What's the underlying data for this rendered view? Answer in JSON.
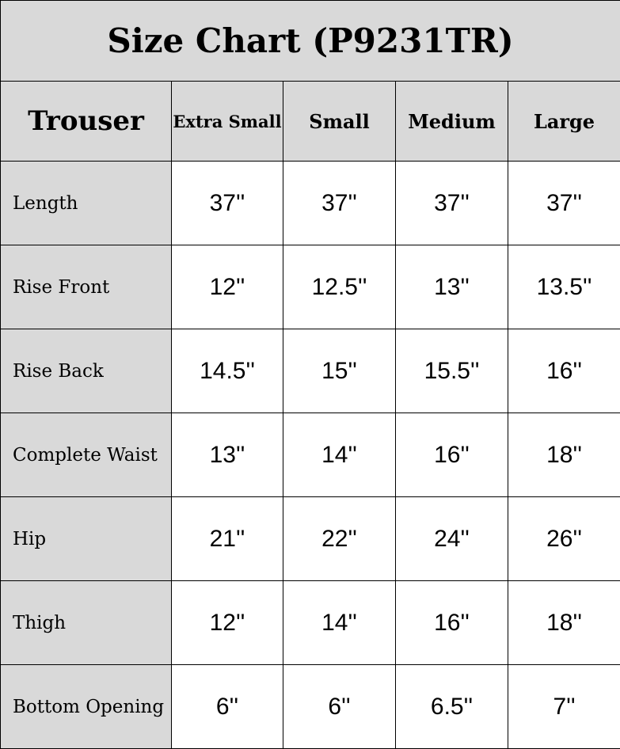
{
  "title": "Size Chart (P9231TR)",
  "header": {
    "category": "Trouser",
    "sizes": [
      "Extra Small",
      "Small",
      "Medium",
      "Large"
    ]
  },
  "rows": [
    {
      "label": "Length",
      "values": [
        "37''",
        "37''",
        "37''",
        "37''"
      ]
    },
    {
      "label": "Rise Front",
      "values": [
        "12''",
        "12.5''",
        "13''",
        "13.5''"
      ]
    },
    {
      "label": "Rise Back",
      "values": [
        "14.5''",
        "15''",
        "15.5''",
        "16''"
      ]
    },
    {
      "label": "Complete Waist",
      "values": [
        "13''",
        "14''",
        "16''",
        "18''"
      ]
    },
    {
      "label": "Hip",
      "values": [
        "21''",
        "22''",
        "24''",
        "26''"
      ]
    },
    {
      "label": "Thigh",
      "values": [
        "12''",
        "14''",
        "16''",
        "18''"
      ]
    },
    {
      "label": "Bottom Opening",
      "values": [
        "6''",
        "6''",
        "6.5''",
        "7''"
      ]
    }
  ],
  "colors": {
    "header_bg": "#d9d9d9",
    "cell_bg": "#ffffff",
    "border": "#000000"
  }
}
